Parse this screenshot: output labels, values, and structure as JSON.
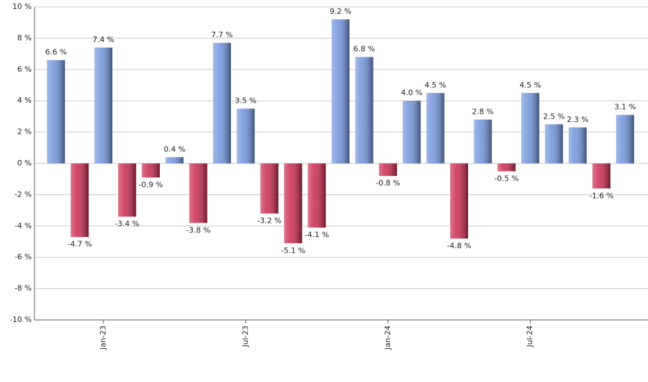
{
  "chart_data": {
    "type": "bar",
    "categories": [
      null,
      null,
      "Jan-23",
      null,
      null,
      null,
      null,
      null,
      "Jul-23",
      null,
      null,
      null,
      null,
      null,
      "Jan-24",
      null,
      null,
      null,
      null,
      null,
      "Jul-24",
      null,
      null,
      null,
      null
    ],
    "values": [
      6.6,
      -4.7,
      7.4,
      -3.4,
      -0.9,
      0.4,
      -3.8,
      7.7,
      3.5,
      -3.2,
      -5.1,
      -4.1,
      9.2,
      6.8,
      -0.8,
      4.0,
      4.5,
      -4.8,
      2.8,
      -0.5,
      4.5,
      2.5,
      2.3,
      -1.6,
      3.1
    ],
    "value_labels": [
      "6.6 %",
      "-4.7 %",
      "7.4 %",
      "-3.4 %",
      "-0.9 %",
      "0.4 %",
      "-3.8 %",
      "7.7 %",
      "3.5 %",
      "-3.2 %",
      "-5.1 %",
      "-4.1 %",
      "9.2 %",
      "6.8 %",
      "-0.8 %",
      "4.0 %",
      "4.5 %",
      "-4.8 %",
      "2.8 %",
      "-0.5 %",
      "4.5 %",
      "2.5 %",
      "2.3 %",
      "-1.6 %",
      "3.1 %"
    ],
    "positive_color": "#6f93dc",
    "negative_color": "#c8284c",
    "ylim": [
      -10,
      10
    ],
    "yticks": [
      {
        "value": -10,
        "label": "-10 %"
      },
      {
        "value": -8,
        "label": "-8 %"
      },
      {
        "value": -6,
        "label": "-6 %"
      },
      {
        "value": -4,
        "label": "-4 %"
      },
      {
        "value": -2,
        "label": "-2 %"
      },
      {
        "value": 0,
        "label": "0 %"
      },
      {
        "value": 2,
        "label": "2 %"
      },
      {
        "value": 4,
        "label": "4 %"
      },
      {
        "value": 6,
        "label": "6 %"
      },
      {
        "value": 8,
        "label": "8 %"
      },
      {
        "value": 10,
        "label": "10 %"
      }
    ],
    "grid": true
  }
}
